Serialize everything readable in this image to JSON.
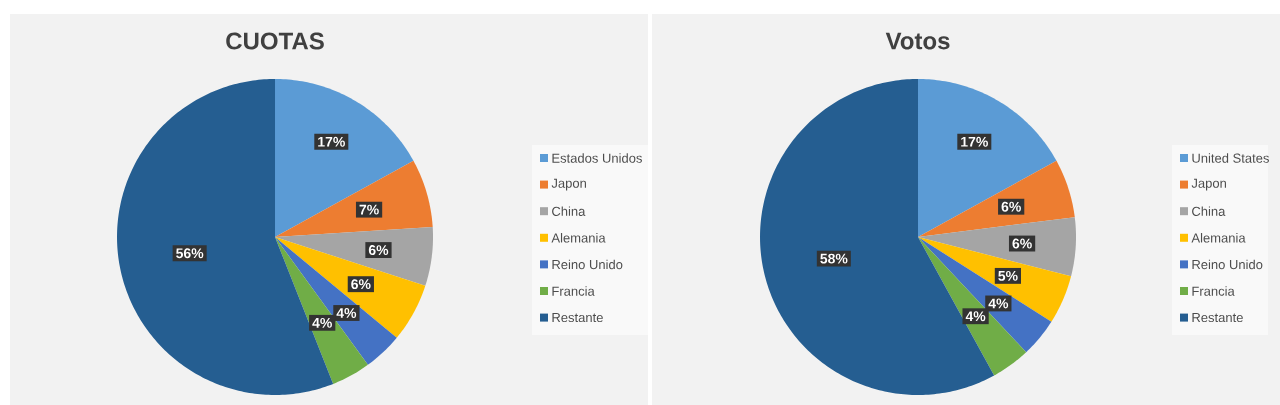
{
  "chart_data": [
    {
      "type": "pie",
      "title": "CUOTAS",
      "categories": [
        "Estados Unidos",
        "Japon",
        "China",
        "Alemania",
        "Reino Unido",
        "Francia",
        "Restante"
      ],
      "values": [
        17,
        7,
        6,
        6,
        4,
        4,
        56
      ],
      "value_labels": [
        "17%",
        "7%",
        "6%",
        "6%",
        "4%",
        "4%",
        "56%"
      ],
      "colors": [
        "#5b9bd5",
        "#ed7d31",
        "#a5a5a5",
        "#ffc000",
        "#4472c4",
        "#70ad47",
        "#255e91"
      ],
      "legend": "right"
    },
    {
      "type": "pie",
      "title": "Votos",
      "categories": [
        "United States",
        "Japon",
        "China",
        "Alemania",
        "Reino Unido",
        "Francia",
        "Restante"
      ],
      "values": [
        17,
        6,
        6,
        5,
        4,
        4,
        58
      ],
      "value_labels": [
        "17%",
        "6%",
        "6%",
        "5%",
        "4%",
        "4%",
        "58%"
      ],
      "colors": [
        "#5b9bd5",
        "#ed7d31",
        "#a5a5a5",
        "#ffc000",
        "#4472c4",
        "#70ad47",
        "#255e91"
      ],
      "legend": "right"
    }
  ]
}
